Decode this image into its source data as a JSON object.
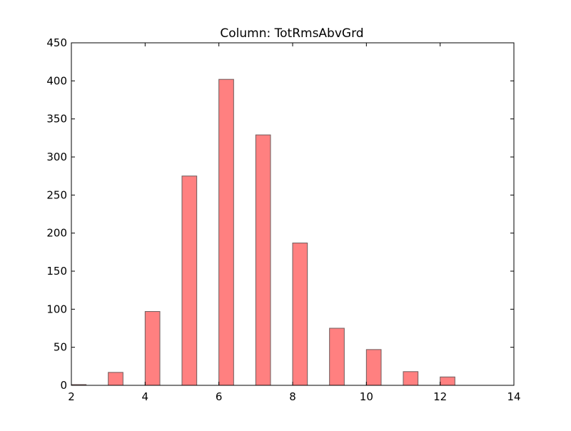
{
  "chart_data": {
    "type": "bar",
    "title": "Column: TotRmsAbvGrd",
    "xlabel": "",
    "ylabel": "",
    "xlim": [
      2,
      14
    ],
    "ylim": [
      0,
      450
    ],
    "xticks": [
      2,
      4,
      6,
      8,
      10,
      12,
      14
    ],
    "yticks": [
      0,
      50,
      100,
      150,
      200,
      250,
      300,
      350,
      400,
      450
    ],
    "grid": false,
    "legend": "none",
    "bin_width": 0.4,
    "bars": [
      {
        "x": 2,
        "value": 1
      },
      {
        "x": 3,
        "value": 17
      },
      {
        "x": 4,
        "value": 97
      },
      {
        "x": 5,
        "value": 275
      },
      {
        "x": 6,
        "value": 402
      },
      {
        "x": 7,
        "value": 329
      },
      {
        "x": 8,
        "value": 187
      },
      {
        "x": 9,
        "value": 75
      },
      {
        "x": 10,
        "value": 47
      },
      {
        "x": 11,
        "value": 18
      },
      {
        "x": 12,
        "value": 11
      }
    ],
    "colors": {
      "bar_fill": "#ff8080",
      "bar_edge": "#6e5b5b",
      "axes": "#000000"
    }
  }
}
